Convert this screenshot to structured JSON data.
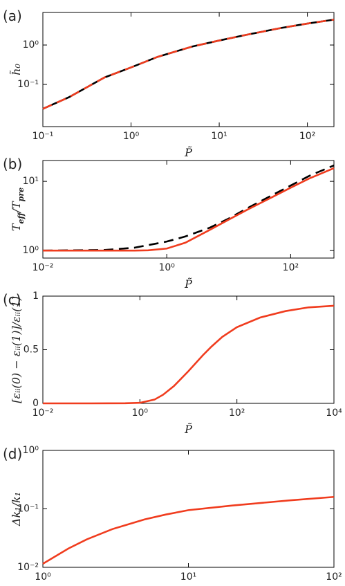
{
  "chart_data": [
    {
      "type": "line",
      "panel_label": "(a)",
      "xlabel": "P̃",
      "ylabel": "h̃₀",
      "xlog": true,
      "ylog": true,
      "xlim": [
        0.1,
        200
      ],
      "ylim": [
        0.0085,
        6.7
      ],
      "xticks": [
        {
          "value": 0.1,
          "label": "10⁻¹"
        },
        {
          "value": 1,
          "label": "10⁰"
        },
        {
          "value": 10,
          "label": "10¹"
        },
        {
          "value": 100,
          "label": "10²"
        }
      ],
      "yticks": [
        {
          "value": 0.1,
          "label": "10⁻¹"
        },
        {
          "value": 1,
          "label": "10⁰"
        }
      ],
      "x": [
        0.1,
        0.2,
        0.5,
        1,
        2,
        5,
        10,
        20,
        50,
        100,
        200
      ],
      "series": [
        {
          "color": "#000000",
          "dashed": false,
          "values": [
            0.024,
            0.048,
            0.15,
            0.27,
            0.5,
            0.92,
            1.3,
            1.8,
            2.7,
            3.5,
            4.4
          ]
        },
        {
          "color": "#f03c1e",
          "dashed": true,
          "values": [
            0.024,
            0.048,
            0.15,
            0.27,
            0.5,
            0.92,
            1.3,
            1.8,
            2.7,
            3.5,
            4.4
          ]
        }
      ]
    },
    {
      "type": "line",
      "panel_label": "(b)",
      "xlabel": "P̃",
      "ylabel": "T_eff/T_pre",
      "xlog": true,
      "ylog": true,
      "xlim": [
        0.01,
        500
      ],
      "ylim": [
        0.78,
        20
      ],
      "xticks": [
        {
          "value": 0.01,
          "label": "10⁻²"
        },
        {
          "value": 1,
          "label": "10⁰"
        },
        {
          "value": 100,
          "label": "10²"
        }
      ],
      "yticks": [
        {
          "value": 1,
          "label": "10⁰"
        },
        {
          "value": 10,
          "label": "10¹"
        }
      ],
      "x": [
        0.01,
        0.1,
        0.3,
        0.5,
        1,
        2,
        5,
        10,
        20,
        50,
        100,
        200,
        500
      ],
      "series": [
        {
          "color": "#000000",
          "dashed": true,
          "values": [
            1.0,
            1.02,
            1.1,
            1.2,
            1.35,
            1.6,
            2.15,
            2.9,
            4.1,
            6.3,
            8.7,
            12,
            17
          ]
        },
        {
          "color": "#f03c1e",
          "dashed": false,
          "values": [
            1.0,
            1.0,
            1.0,
            1.01,
            1.07,
            1.3,
            2.0,
            2.8,
            3.9,
            5.9,
            8.1,
            11,
            15.5
          ]
        }
      ]
    },
    {
      "type": "line",
      "panel_label": "(c)",
      "xlabel": "P̃",
      "ylabel": "[εᵢᵢ(0) − εᵢᵢ(1)]/εᵢᵢ(1)",
      "xlog": true,
      "ylog": false,
      "xlim": [
        0.01,
        10000
      ],
      "ylim": [
        0,
        1
      ],
      "xticks": [
        {
          "value": 0.01,
          "label": "10⁻²"
        },
        {
          "value": 1,
          "label": "10⁰"
        },
        {
          "value": 100,
          "label": "10²"
        },
        {
          "value": 10000,
          "label": "10⁴"
        }
      ],
      "yticks": [
        0,
        0.5,
        1
      ],
      "x": [
        0.01,
        0.1,
        0.5,
        1,
        2,
        3,
        5,
        10,
        20,
        30,
        50,
        100,
        300,
        1000,
        3000,
        10000
      ],
      "series": [
        {
          "color": "#f03c1e",
          "dashed": false,
          "values": [
            0,
            0,
            0.001,
            0.005,
            0.035,
            0.08,
            0.16,
            0.3,
            0.45,
            0.53,
            0.62,
            0.71,
            0.8,
            0.86,
            0.895,
            0.91
          ]
        }
      ]
    },
    {
      "type": "line",
      "panel_label": "(d)",
      "xlabel": "P̃",
      "ylabel": "Δk₁/k₁",
      "xlog": true,
      "ylog": true,
      "xlim": [
        1,
        100
      ],
      "ylim": [
        0.01,
        1
      ],
      "xticks": [
        {
          "value": 1,
          "label": "10⁰"
        },
        {
          "value": 10,
          "label": "10¹"
        },
        {
          "value": 100,
          "label": "10²"
        }
      ],
      "yticks": [
        {
          "value": 0.01,
          "label": "10⁻²"
        },
        {
          "value": 0.1,
          "label": "10⁻¹"
        },
        {
          "value": 1,
          "label": "10⁰"
        }
      ],
      "x": [
        1,
        1.5,
        2,
        3,
        5,
        7,
        10,
        20,
        50,
        100
      ],
      "series": [
        {
          "color": "#f03c1e",
          "dashed": false,
          "values": [
            0.0115,
            0.021,
            0.03,
            0.045,
            0.066,
            0.08,
            0.095,
            0.114,
            0.14,
            0.16
          ]
        }
      ]
    }
  ]
}
